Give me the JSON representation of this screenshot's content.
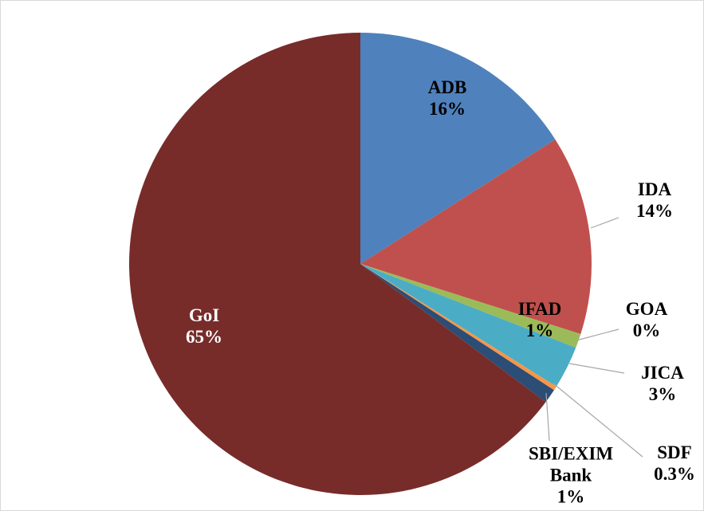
{
  "chart_data": {
    "type": "pie",
    "categories": [
      "ADB",
      "IDA",
      "IFAD",
      "GOA",
      "JICA",
      "SDF",
      "SBI/EXIM Bank",
      "GoI"
    ],
    "values": [
      16,
      14,
      1,
      0,
      3,
      0.3,
      1,
      65
    ],
    "value_labels": [
      "16%",
      "14%",
      "1%",
      "0%",
      "3%",
      "0.3%",
      "1%",
      "65%"
    ],
    "colors": [
      "#4f81bd",
      "#c0504d",
      "#9bbb59",
      "#8064a2",
      "#4bacc6",
      "#f79646",
      "#2c4d75",
      "#772c2a"
    ]
  }
}
